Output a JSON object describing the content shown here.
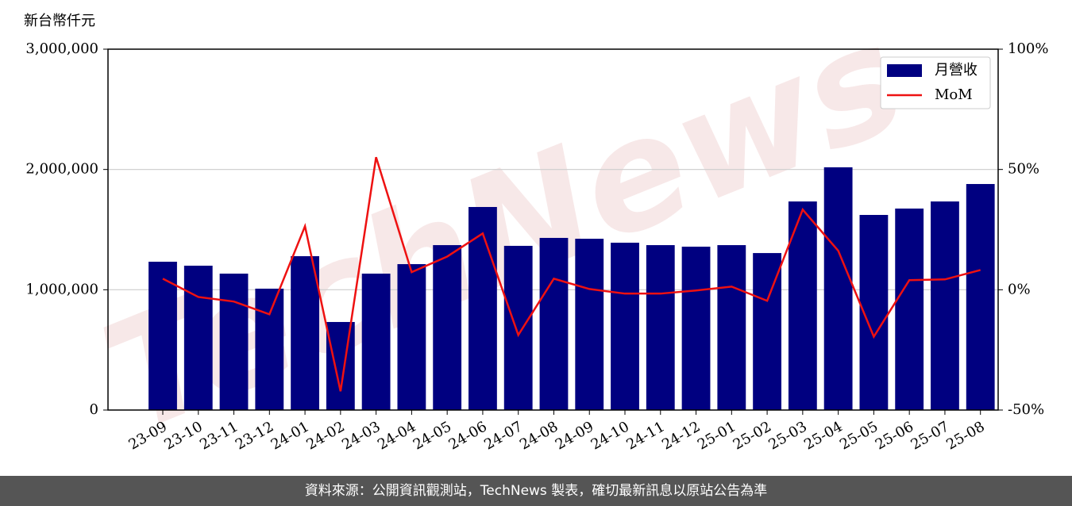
{
  "chart_data": {
    "type": "bar-line",
    "ylabel": "新台幣仟元",
    "watermark": "TechNews",
    "footer": "資料來源：公開資訊觀測站，TechNews 製表，確切最新訊息以原站公告為準",
    "categories": [
      "23-09",
      "23-10",
      "23-11",
      "23-12",
      "24-01",
      "24-02",
      "24-03",
      "24-04",
      "24-05",
      "24-06",
      "24-07",
      "24-08",
      "24-09",
      "24-10",
      "24-11",
      "24-12",
      "25-01",
      "25-02",
      "25-03",
      "25-04",
      "25-05",
      "25-06",
      "25-07",
      "25-08"
    ],
    "series": [
      {
        "name": "月營收",
        "type": "bar",
        "color": "#000080",
        "values": [
          1233000,
          1200000,
          1134000,
          1009000,
          1279000,
          732000,
          1134000,
          1213000,
          1371000,
          1688000,
          1365000,
          1431000,
          1424000,
          1391000,
          1371000,
          1358000,
          1371000,
          1305000,
          1734000,
          2018000,
          1622000,
          1675000,
          1734000,
          1879000
        ]
      },
      {
        "name": "MoM",
        "type": "line",
        "axis": "y2",
        "color": "#ee1111",
        "values": [
          4.6,
          -3.0,
          -4.9,
          -10.2,
          26.4,
          -42.2,
          55.1,
          7.3,
          13.8,
          23.4,
          -18.8,
          4.6,
          0.3,
          -1.6,
          -1.6,
          -0.3,
          1.3,
          -4.6,
          33.3,
          16.2,
          -19.5,
          4.0,
          4.3,
          8.2
        ]
      }
    ],
    "ylim": [
      0,
      3000000
    ],
    "yticks": [
      0,
      {
        "value": 1000000,
        "label": "1,000,000"
      },
      {
        "value": 2000000,
        "label": "2,000,000"
      },
      {
        "value": 3000000,
        "label": "3,000,000"
      }
    ],
    "y2lim": [
      -50,
      100
    ],
    "y2ticks": [
      {
        "value": -50,
        "label": "-50%"
      },
      {
        "value": 0,
        "label": "0%"
      },
      {
        "value": 50,
        "label": "50%"
      },
      {
        "value": 100,
        "label": "100%"
      }
    ],
    "grid": true,
    "legend": "upper right"
  }
}
